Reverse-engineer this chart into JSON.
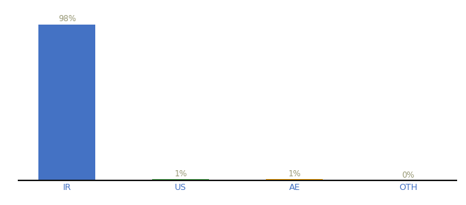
{
  "categories": [
    "IR",
    "US",
    "AE",
    "OTH"
  ],
  "values": [
    98,
    1,
    1,
    0
  ],
  "labels": [
    "98%",
    "1%",
    "1%",
    "0%"
  ],
  "bar_colors": [
    "#4472c4",
    "#4caf50",
    "#ffa500",
    "#4472c4"
  ],
  "background_color": "#ffffff",
  "label_color": "#999977",
  "xlabel_color": "#4472c4",
  "figsize": [
    6.8,
    3.0
  ],
  "dpi": 100,
  "ylim": [
    0,
    103
  ]
}
